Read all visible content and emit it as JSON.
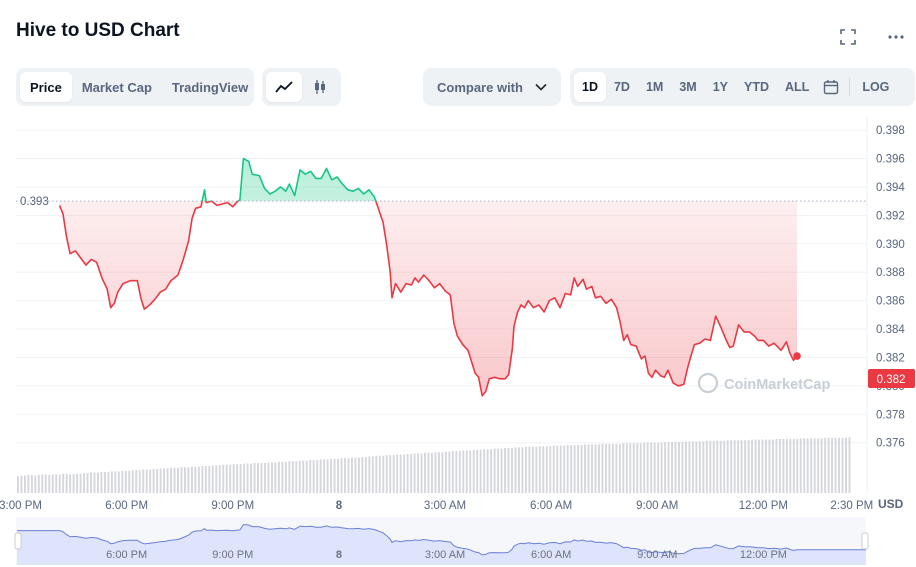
{
  "header": {
    "title": "Hive to USD Chart"
  },
  "toolbar": {
    "view_tabs": [
      "Price",
      "Market Cap",
      "TradingView"
    ],
    "active_view": "Price",
    "compare_label": "Compare with",
    "range_tabs": [
      "1D",
      "7D",
      "1M",
      "3M",
      "1Y",
      "YTD",
      "ALL"
    ],
    "active_range": "1D",
    "log_label": "LOG"
  },
  "colors": {
    "up": "#16c784",
    "down": "#ea3943",
    "volume": "#d5d7dc",
    "navigator_fill": "#dde4fb",
    "navigator_line": "#6b7fd7"
  },
  "chart_data": {
    "type": "line",
    "title": "Hive to USD Chart",
    "reference_price": 0.393,
    "reference_label": "0.393",
    "current_price": 0.382,
    "current_label": "0.382",
    "currency_label": "USD",
    "watermark": "CoinMarketCap",
    "ylim": [
      0.3745,
      0.3985
    ],
    "yticks": [
      "0.398",
      "0.396",
      "0.394",
      "0.392",
      "0.390",
      "0.388",
      "0.386",
      "0.384",
      "0.382",
      "0.380",
      "0.378",
      "0.376"
    ],
    "xlim": [
      14.9,
      38.9
    ],
    "xticks": [
      {
        "label": "3:00 PM",
        "t": 15.0
      },
      {
        "label": "6:00 PM",
        "t": 18.0
      },
      {
        "label": "9:00 PM",
        "t": 21.0
      },
      {
        "label": "8",
        "t": 24.0
      },
      {
        "label": "3:00 AM",
        "t": 27.0
      },
      {
        "label": "6:00 AM",
        "t": 30.0
      },
      {
        "label": "9:00 AM",
        "t": 33.0
      },
      {
        "label": "12:00 PM",
        "t": 36.0
      },
      {
        "label": "2:30 PM",
        "t": 38.5
      }
    ],
    "navigator_ticks": [
      "6:00 PM",
      "9:00 PM",
      "8",
      "3:00 AM",
      "6:00 AM",
      "9:00 AM",
      "12:00 PM"
    ],
    "grid": true,
    "series": [
      {
        "values": [
          [
            16.1,
            0.3927
          ],
          [
            16.2,
            0.3921
          ],
          [
            16.3,
            0.3905
          ],
          [
            16.4,
            0.3893
          ],
          [
            16.55,
            0.3895
          ],
          [
            16.7,
            0.389
          ],
          [
            16.85,
            0.3885
          ],
          [
            17.0,
            0.3889
          ],
          [
            17.15,
            0.3887
          ],
          [
            17.3,
            0.3876
          ],
          [
            17.45,
            0.3868
          ],
          [
            17.55,
            0.3855
          ],
          [
            17.65,
            0.3858
          ],
          [
            17.75,
            0.3866
          ],
          [
            17.9,
            0.3872
          ],
          [
            18.1,
            0.3874
          ],
          [
            18.3,
            0.3874
          ],
          [
            18.4,
            0.3862
          ],
          [
            18.5,
            0.3854
          ],
          [
            18.65,
            0.3857
          ],
          [
            18.8,
            0.3861
          ],
          [
            18.95,
            0.3866
          ],
          [
            19.1,
            0.3868
          ],
          [
            19.25,
            0.3874
          ],
          [
            19.45,
            0.3878
          ],
          [
            19.6,
            0.3889
          ],
          [
            19.75,
            0.3902
          ],
          [
            19.85,
            0.3918
          ],
          [
            19.95,
            0.3925
          ],
          [
            20.1,
            0.3926
          ],
          [
            20.2,
            0.3938
          ],
          [
            20.25,
            0.3929
          ],
          [
            20.4,
            0.393
          ],
          [
            20.55,
            0.3927
          ],
          [
            20.7,
            0.3928
          ],
          [
            20.85,
            0.3929
          ],
          [
            21.0,
            0.3926
          ],
          [
            21.1,
            0.3929
          ],
          [
            21.2,
            0.3931
          ],
          [
            21.3,
            0.396
          ],
          [
            21.45,
            0.3958
          ],
          [
            21.55,
            0.3949
          ],
          [
            21.75,
            0.3948
          ],
          [
            21.9,
            0.3939
          ],
          [
            22.05,
            0.3935
          ],
          [
            22.2,
            0.3937
          ],
          [
            22.35,
            0.394
          ],
          [
            22.5,
            0.3937
          ],
          [
            22.6,
            0.3942
          ],
          [
            22.75,
            0.3934
          ],
          [
            22.9,
            0.3952
          ],
          [
            23.05,
            0.3949
          ],
          [
            23.2,
            0.3951
          ],
          [
            23.35,
            0.3946
          ],
          [
            23.5,
            0.3946
          ],
          [
            23.65,
            0.3953
          ],
          [
            23.8,
            0.3945
          ],
          [
            23.95,
            0.3947
          ],
          [
            24.1,
            0.3942
          ],
          [
            24.25,
            0.3938
          ],
          [
            24.4,
            0.3937
          ],
          [
            24.55,
            0.3939
          ],
          [
            24.7,
            0.3935
          ],
          [
            24.85,
            0.3938
          ],
          [
            25.0,
            0.3933
          ],
          [
            25.1,
            0.3926
          ],
          [
            25.25,
            0.3915
          ],
          [
            25.35,
            0.3899
          ],
          [
            25.45,
            0.388
          ],
          [
            25.5,
            0.3862
          ],
          [
            25.6,
            0.3872
          ],
          [
            25.75,
            0.3866
          ],
          [
            25.9,
            0.3872
          ],
          [
            26.05,
            0.3871
          ],
          [
            26.15,
            0.3876
          ],
          [
            26.25,
            0.3873
          ],
          [
            26.4,
            0.3878
          ],
          [
            26.55,
            0.3874
          ],
          [
            26.7,
            0.3869
          ],
          [
            26.85,
            0.3872
          ],
          [
            27.0,
            0.3867
          ],
          [
            27.15,
            0.3864
          ],
          [
            27.25,
            0.3844
          ],
          [
            27.35,
            0.3835
          ],
          [
            27.5,
            0.3829
          ],
          [
            27.65,
            0.3825
          ],
          [
            27.75,
            0.3817
          ],
          [
            27.85,
            0.3809
          ],
          [
            27.95,
            0.3806
          ],
          [
            28.05,
            0.3793
          ],
          [
            28.15,
            0.3796
          ],
          [
            28.25,
            0.3805
          ],
          [
            28.4,
            0.3806
          ],
          [
            28.55,
            0.3805
          ],
          [
            28.7,
            0.3805
          ],
          [
            28.8,
            0.3808
          ],
          [
            28.9,
            0.3826
          ],
          [
            28.95,
            0.3842
          ],
          [
            29.05,
            0.3852
          ],
          [
            29.15,
            0.3857
          ],
          [
            29.25,
            0.3855
          ],
          [
            29.35,
            0.386
          ],
          [
            29.5,
            0.3855
          ],
          [
            29.65,
            0.3857
          ],
          [
            29.8,
            0.3852
          ],
          [
            29.95,
            0.386
          ],
          [
            30.1,
            0.3862
          ],
          [
            30.25,
            0.3855
          ],
          [
            30.4,
            0.3865
          ],
          [
            30.55,
            0.3864
          ],
          [
            30.65,
            0.3876
          ],
          [
            30.75,
            0.387
          ],
          [
            30.9,
            0.3875
          ],
          [
            31.0,
            0.3868
          ],
          [
            31.15,
            0.387
          ],
          [
            31.25,
            0.3862
          ],
          [
            31.4,
            0.3863
          ],
          [
            31.55,
            0.3858
          ],
          [
            31.7,
            0.3861
          ],
          [
            31.85,
            0.3855
          ],
          [
            31.95,
            0.3845
          ],
          [
            32.05,
            0.3832
          ],
          [
            32.15,
            0.3836
          ],
          [
            32.25,
            0.3829
          ],
          [
            32.4,
            0.3828
          ],
          [
            32.55,
            0.3819
          ],
          [
            32.65,
            0.3821
          ],
          [
            32.75,
            0.3809
          ],
          [
            32.85,
            0.3806
          ],
          [
            32.95,
            0.3811
          ],
          [
            33.1,
            0.3807
          ],
          [
            33.2,
            0.3806
          ],
          [
            33.3,
            0.3811
          ],
          [
            33.45,
            0.3802
          ],
          [
            33.6,
            0.38
          ],
          [
            33.75,
            0.3801
          ],
          [
            33.85,
            0.3812
          ],
          [
            33.95,
            0.3821
          ],
          [
            34.05,
            0.3829
          ],
          [
            34.2,
            0.383
          ],
          [
            34.35,
            0.3833
          ],
          [
            34.5,
            0.3832
          ],
          [
            34.65,
            0.3849
          ],
          [
            34.8,
            0.3841
          ],
          [
            34.95,
            0.3832
          ],
          [
            35.05,
            0.3827
          ],
          [
            35.15,
            0.3828
          ],
          [
            35.3,
            0.3843
          ],
          [
            35.45,
            0.3838
          ],
          [
            35.6,
            0.3838
          ],
          [
            35.75,
            0.3835
          ],
          [
            35.85,
            0.3832
          ],
          [
            36.0,
            0.3832
          ],
          [
            36.15,
            0.3828
          ],
          [
            36.3,
            0.383
          ],
          [
            36.5,
            0.3825
          ],
          [
            36.65,
            0.3831
          ],
          [
            36.75,
            0.3823
          ],
          [
            36.85,
            0.3818
          ],
          [
            36.95,
            0.3821
          ]
        ]
      }
    ],
    "volume": [
      0.28,
      0.29,
      0.29,
      0.3,
      0.3,
      0.29,
      0.3,
      0.31,
      0.31,
      0.3,
      0.31,
      0.31,
      0.31,
      0.32,
      0.32,
      0.31,
      0.32,
      0.32,
      0.32,
      0.33,
      0.33,
      0.34,
      0.34,
      0.34,
      0.35,
      0.35,
      0.35,
      0.36,
      0.36,
      0.36,
      0.37,
      0.37,
      0.37,
      0.38,
      0.38,
      0.38,
      0.39,
      0.39,
      0.39,
      0.4,
      0.4,
      0.41,
      0.41,
      0.41,
      0.42,
      0.42,
      0.42,
      0.43,
      0.43,
      0.43,
      0.44,
      0.44,
      0.44,
      0.45,
      0.45,
      0.45,
      0.46,
      0.46,
      0.46,
      0.47,
      0.47,
      0.47,
      0.48,
      0.48,
      0.48,
      0.49,
      0.49,
      0.49,
      0.5,
      0.5,
      0.5,
      0.5,
      0.51,
      0.51,
      0.51,
      0.52,
      0.52,
      0.52,
      0.53,
      0.53,
      0.53,
      0.54,
      0.54,
      0.54,
      0.55,
      0.55,
      0.55,
      0.56,
      0.56,
      0.56,
      0.57,
      0.57,
      0.57,
      0.58,
      0.58,
      0.58,
      0.59,
      0.59,
      0.59,
      0.6,
      0.6,
      0.61,
      0.61,
      0.62,
      0.62,
      0.62,
      0.63,
      0.63,
      0.63,
      0.64,
      0.64,
      0.64,
      0.65,
      0.65,
      0.66,
      0.66,
      0.66,
      0.67,
      0.67,
      0.67,
      0.68,
      0.68,
      0.68,
      0.69,
      0.69,
      0.7,
      0.7,
      0.7,
      0.71,
      0.71,
      0.71,
      0.72,
      0.72,
      0.72,
      0.73,
      0.73,
      0.73,
      0.74,
      0.74,
      0.74,
      0.75,
      0.75,
      0.75,
      0.76,
      0.76,
      0.76,
      0.77,
      0.77,
      0.77,
      0.77,
      0.78,
      0.78,
      0.78,
      0.78,
      0.79,
      0.79,
      0.79,
      0.79,
      0.8,
      0.8,
      0.8,
      0.8,
      0.8,
      0.81,
      0.81,
      0.81,
      0.81,
      0.81,
      0.82,
      0.82,
      0.82,
      0.82,
      0.82,
      0.82,
      0.83,
      0.83,
      0.83,
      0.83,
      0.83,
      0.83,
      0.84,
      0.84,
      0.84,
      0.84,
      0.84,
      0.84,
      0.85,
      0.85,
      0.85,
      0.85,
      0.85,
      0.85,
      0.86,
      0.86,
      0.86,
      0.86,
      0.86,
      0.86,
      0.87,
      0.87,
      0.87,
      0.87,
      0.87,
      0.87,
      0.88,
      0.88,
      0.88,
      0.88,
      0.88,
      0.88,
      0.88,
      0.89,
      0.89,
      0.89,
      0.89,
      0.89,
      0.89,
      0.89,
      0.9,
      0.9,
      0.9,
      0.9,
      0.9,
      0.9,
      0.9,
      0.91,
      0.91,
      0.91,
      0.91,
      0.91,
      0.91,
      0.91,
      0.92,
      0.92,
      0.92,
      0.92,
      0.92,
      0.92,
      0.92,
      0.93
    ]
  }
}
